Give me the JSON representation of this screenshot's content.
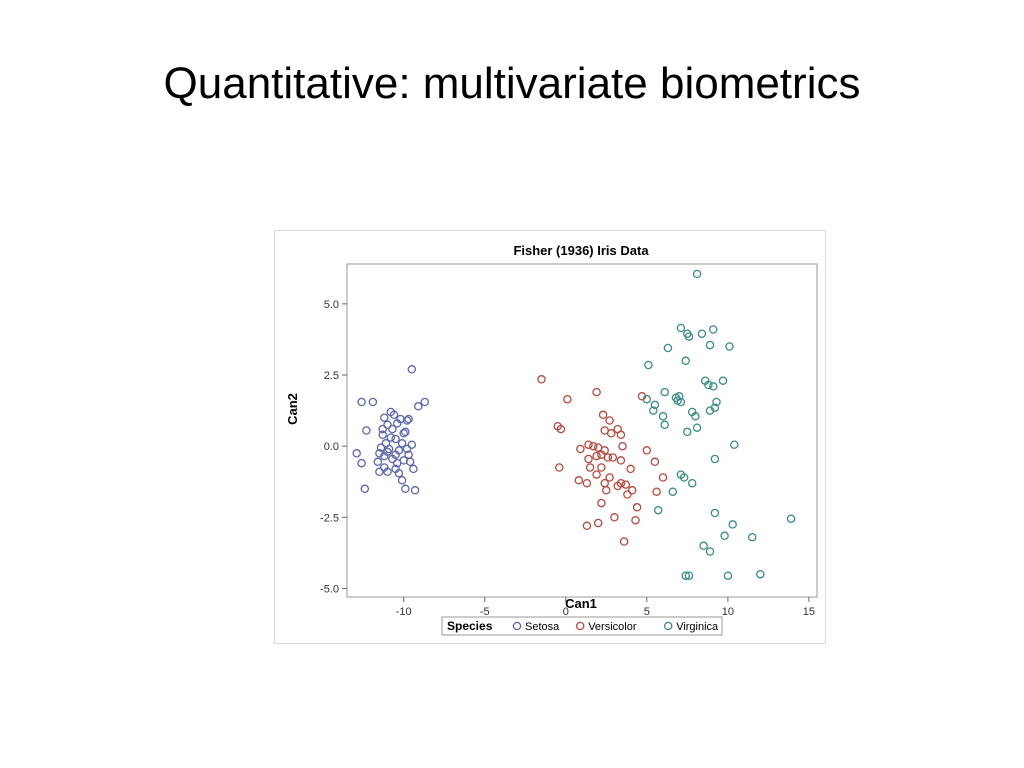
{
  "slide": {
    "title": "Quantitative: multivariate biometrics"
  },
  "chart_data": {
    "type": "scatter",
    "title": "Fisher (1936) Iris Data",
    "xlabel": "Can1",
    "ylabel": "Can2",
    "xlim": [
      -13.5,
      15.5
    ],
    "ylim": [
      -5.3,
      6.4
    ],
    "xticks": [
      -10,
      -5,
      0,
      5,
      10,
      15
    ],
    "xtick_labels": [
      "-10",
      "-5",
      "0",
      "5",
      "10",
      "15"
    ],
    "yticks": [
      -5,
      -2.5,
      0,
      2.5,
      5
    ],
    "ytick_labels": [
      "-5.0",
      "-2.5",
      "0.0",
      "2.5",
      "5.0"
    ],
    "grid": false,
    "marker": "open-circle",
    "legend": {
      "title": "Species",
      "placement": "bottom"
    },
    "series": [
      {
        "name": "Setosa",
        "color": "#5b66ad",
        "points": [
          [
            -9.5,
            2.7
          ],
          [
            -12.6,
            1.55
          ],
          [
            -11.9,
            1.55
          ],
          [
            -8.7,
            1.55
          ],
          [
            -9.1,
            1.4
          ],
          [
            -10.8,
            1.2
          ],
          [
            -10.6,
            1.1
          ],
          [
            -11.2,
            1.0
          ],
          [
            -10.2,
            0.95
          ],
          [
            -9.8,
            0.9
          ],
          [
            -9.7,
            0.95
          ],
          [
            -11.0,
            0.75
          ],
          [
            -10.4,
            0.8
          ],
          [
            -11.3,
            0.6
          ],
          [
            -10.7,
            0.6
          ],
          [
            -12.3,
            0.55
          ],
          [
            -9.9,
            0.5
          ],
          [
            -11.3,
            0.4
          ],
          [
            -10.5,
            0.25
          ],
          [
            -10.1,
            0.1
          ],
          [
            -9.5,
            0.05
          ],
          [
            -9.8,
            -0.1
          ],
          [
            -12.9,
            -0.25
          ],
          [
            -11.5,
            -0.25
          ],
          [
            -11.0,
            -0.2
          ],
          [
            -10.5,
            -0.3
          ],
          [
            -9.7,
            -0.3
          ],
          [
            -11.2,
            -0.35
          ],
          [
            -10.7,
            -0.45
          ],
          [
            -10.0,
            -0.5
          ],
          [
            -9.6,
            -0.55
          ],
          [
            -12.6,
            -0.6
          ],
          [
            -11.2,
            -0.75
          ],
          [
            -10.5,
            -0.8
          ],
          [
            -9.4,
            -0.8
          ],
          [
            -11.5,
            -0.9
          ],
          [
            -11.0,
            -0.9
          ],
          [
            -10.3,
            -0.95
          ],
          [
            -10.1,
            -1.2
          ],
          [
            -9.9,
            -1.5
          ],
          [
            -12.4,
            -1.5
          ],
          [
            -9.3,
            -1.55
          ],
          [
            -10.9,
            -0.1
          ],
          [
            -10.3,
            -0.15
          ],
          [
            -10.8,
            0.3
          ],
          [
            -11.6,
            -0.55
          ],
          [
            -10.0,
            0.45
          ],
          [
            -11.1,
            0.1
          ],
          [
            -10.4,
            -0.6
          ],
          [
            -11.4,
            -0.05
          ]
        ]
      },
      {
        "name": "Versicolor",
        "color": "#b8493c",
        "points": [
          [
            -1.5,
            2.35
          ],
          [
            0.1,
            1.65
          ],
          [
            1.9,
            1.9
          ],
          [
            4.7,
            1.75
          ],
          [
            2.3,
            1.1
          ],
          [
            2.7,
            0.9
          ],
          [
            -0.5,
            0.7
          ],
          [
            -0.3,
            0.6
          ],
          [
            2.4,
            0.55
          ],
          [
            3.2,
            0.6
          ],
          [
            2.8,
            0.45
          ],
          [
            3.4,
            0.4
          ],
          [
            1.4,
            0.05
          ],
          [
            1.7,
            0.0
          ],
          [
            2.0,
            -0.05
          ],
          [
            3.5,
            0.0
          ],
          [
            0.9,
            -0.1
          ],
          [
            5.0,
            -0.15
          ],
          [
            2.4,
            -0.15
          ],
          [
            2.2,
            -0.3
          ],
          [
            1.9,
            -0.35
          ],
          [
            2.6,
            -0.4
          ],
          [
            2.9,
            -0.4
          ],
          [
            1.4,
            -0.45
          ],
          [
            3.4,
            -0.5
          ],
          [
            5.5,
            -0.55
          ],
          [
            1.5,
            -0.75
          ],
          [
            -0.4,
            -0.75
          ],
          [
            2.2,
            -0.75
          ],
          [
            4.0,
            -0.8
          ],
          [
            1.9,
            -1.0
          ],
          [
            2.7,
            -1.1
          ],
          [
            6.0,
            -1.1
          ],
          [
            0.8,
            -1.2
          ],
          [
            3.4,
            -1.3
          ],
          [
            3.2,
            -1.4
          ],
          [
            3.7,
            -1.35
          ],
          [
            2.4,
            -1.3
          ],
          [
            1.3,
            -1.3
          ],
          [
            4.1,
            -1.55
          ],
          [
            5.6,
            -1.6
          ],
          [
            3.8,
            -1.7
          ],
          [
            2.2,
            -2.0
          ],
          [
            4.4,
            -2.15
          ],
          [
            3.0,
            -2.5
          ],
          [
            4.3,
            -2.6
          ],
          [
            2.0,
            -2.7
          ],
          [
            1.3,
            -2.8
          ],
          [
            3.6,
            -3.35
          ],
          [
            2.5,
            -1.55
          ]
        ]
      },
      {
        "name": "Virginica",
        "color": "#3a8d86",
        "points": [
          [
            8.1,
            6.05
          ],
          [
            7.1,
            4.15
          ],
          [
            7.5,
            3.95
          ],
          [
            7.6,
            3.85
          ],
          [
            8.4,
            3.95
          ],
          [
            9.1,
            4.1
          ],
          [
            6.3,
            3.45
          ],
          [
            8.9,
            3.55
          ],
          [
            10.1,
            3.5
          ],
          [
            7.4,
            3.0
          ],
          [
            5.1,
            2.85
          ],
          [
            9.7,
            2.3
          ],
          [
            8.8,
            2.15
          ],
          [
            9.1,
            2.1
          ],
          [
            6.1,
            1.9
          ],
          [
            7.0,
            1.75
          ],
          [
            5.0,
            1.65
          ],
          [
            7.1,
            1.55
          ],
          [
            6.9,
            1.6
          ],
          [
            9.3,
            1.55
          ],
          [
            5.5,
            1.45
          ],
          [
            9.2,
            1.35
          ],
          [
            8.9,
            1.25
          ],
          [
            5.4,
            1.25
          ],
          [
            7.8,
            1.2
          ],
          [
            6.0,
            1.05
          ],
          [
            6.1,
            0.75
          ],
          [
            8.1,
            0.65
          ],
          [
            7.5,
            0.5
          ],
          [
            10.4,
            0.05
          ],
          [
            9.2,
            -0.45
          ],
          [
            7.1,
            -1.0
          ],
          [
            7.3,
            -1.1
          ],
          [
            7.8,
            -1.3
          ],
          [
            6.6,
            -1.6
          ],
          [
            5.7,
            -2.25
          ],
          [
            9.2,
            -2.35
          ],
          [
            10.3,
            -2.75
          ],
          [
            13.9,
            -2.55
          ],
          [
            9.8,
            -3.15
          ],
          [
            11.5,
            -3.2
          ],
          [
            8.5,
            -3.5
          ],
          [
            8.9,
            -3.7
          ],
          [
            7.4,
            -4.55
          ],
          [
            7.6,
            -4.55
          ],
          [
            10.0,
            -4.55
          ],
          [
            12.0,
            -4.5
          ],
          [
            8.6,
            2.3
          ],
          [
            6.8,
            1.7
          ],
          [
            8.0,
            1.05
          ]
        ]
      }
    ]
  }
}
